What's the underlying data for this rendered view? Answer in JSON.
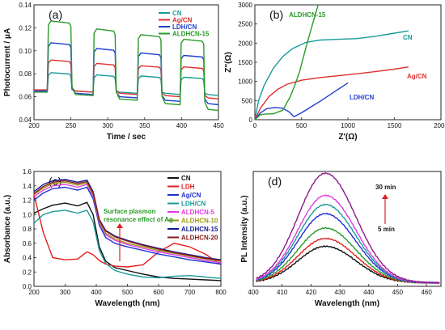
{
  "chart_data": [
    {
      "panel": "(a)",
      "type": "line",
      "xlabel": "Time / sec",
      "ylabel": "Photocurrent / μA",
      "xlim": [
        200,
        450
      ],
      "ylim": [
        0.04,
        0.14
      ],
      "xticks": [
        200,
        250,
        300,
        350,
        400,
        450
      ],
      "yticks": [
        0.04,
        0.06,
        0.08,
        0.1,
        0.12,
        0.14
      ],
      "legend_position": "top-right",
      "on_intervals": [
        [
          218,
          250
        ],
        [
          280,
          310
        ],
        [
          340,
          372
        ],
        [
          398,
          430
        ]
      ],
      "series": [
        {
          "name": "CN",
          "color": "#1a9a9a",
          "dark": [
            0.065,
            0.064,
            0.063,
            0.062,
            0.061
          ],
          "light": [
            0.081,
            0.079,
            0.078,
            0.077
          ]
        },
        {
          "name": "Ag/CN",
          "color": "#e03030",
          "dark": [
            0.066,
            0.064,
            0.062,
            0.06,
            0.058
          ],
          "light": [
            0.092,
            0.089,
            0.087,
            0.086
          ]
        },
        {
          "name": "LDH/CN",
          "color": "#1f3fd0",
          "dark": [
            0.065,
            0.062,
            0.059,
            0.056,
            0.053
          ],
          "light": [
            0.107,
            0.102,
            0.098,
            0.096
          ]
        },
        {
          "name": "ALDHCN-15",
          "color": "#2a9a2a",
          "dark": [
            0.064,
            0.061,
            0.057,
            0.053,
            0.048
          ],
          "light": [
            0.126,
            0.119,
            0.114,
            0.11
          ]
        }
      ]
    },
    {
      "panel": "(b)",
      "type": "line",
      "xlabel": "Z'(Ω)",
      "ylabel": "Z''(Ω)",
      "xlim": [
        0,
        2000
      ],
      "ylim": [
        0,
        3000
      ],
      "xticks": [
        0,
        500,
        1000,
        1500,
        2000
      ],
      "yticks": [
        0,
        500,
        1000,
        1500,
        2000,
        2500,
        3000
      ],
      "series": [
        {
          "name": "CN",
          "color": "#1a9a9a",
          "x": [
            0,
            40,
            100,
            200,
            300,
            400,
            550,
            700,
            900,
            1100,
            1300,
            1500,
            1650
          ],
          "y": [
            0,
            500,
            900,
            1350,
            1650,
            1850,
            2020,
            2080,
            2100,
            2120,
            2180,
            2260,
            2320
          ]
        },
        {
          "name": "Ag/CN",
          "color": "#e03030",
          "x": [
            0,
            60,
            150,
            250,
            350,
            500,
            700,
            900,
            1100,
            1300,
            1500,
            1650
          ],
          "y": [
            0,
            300,
            600,
            800,
            930,
            1030,
            1100,
            1150,
            1200,
            1260,
            1320,
            1380
          ]
        },
        {
          "name": "LDH/CN",
          "color": "#1f3fd0",
          "x": [
            0,
            60,
            130,
            220,
            300,
            370,
            420,
            500,
            600,
            700,
            800,
            900,
            1000
          ],
          "y": [
            0,
            180,
            290,
            320,
            300,
            200,
            80,
            180,
            330,
            480,
            640,
            800,
            960
          ]
        },
        {
          "name": "ALDHCN-15",
          "color": "#2a9a2a",
          "x": [
            0,
            60,
            120,
            200,
            300,
            380,
            430,
            480,
            550,
            620,
            680
          ],
          "y": [
            0,
            130,
            150,
            155,
            250,
            600,
            900,
            1250,
            1900,
            2500,
            3000
          ]
        }
      ],
      "labels": {
        "CN": "CN",
        "Ag/CN": "Ag/CN",
        "LDH/CN": "LDH/CN",
        "ALDHCN-15": "ALDHCN-15"
      }
    },
    {
      "panel": "(c)",
      "type": "line",
      "xlabel": "Wavelength (nm)",
      "ylabel": "Absorbance (a.u.)",
      "xlim": [
        200,
        800
      ],
      "ylim": [
        0.0,
        1.6
      ],
      "xticks": [
        200,
        300,
        400,
        500,
        600,
        700,
        800
      ],
      "yticks": [
        0.0,
        0.2,
        0.4,
        0.6,
        0.8,
        1.0,
        1.2,
        1.4,
        1.6
      ],
      "annotation": "Surface plasmon resonance effect of Ag",
      "x": [
        200,
        230,
        260,
        300,
        340,
        370,
        390,
        410,
        430,
        460,
        500,
        550,
        600,
        650,
        700,
        750,
        800
      ],
      "series": [
        {
          "name": "CN",
          "color": "#111111",
          "y": [
            1.02,
            1.08,
            1.13,
            1.16,
            1.12,
            1.17,
            1.0,
            0.55,
            0.35,
            0.26,
            0.22,
            0.17,
            0.13,
            0.11,
            0.1,
            0.09,
            0.08
          ]
        },
        {
          "name": "LDH",
          "color": "#e02020",
          "y": [
            1.28,
            0.75,
            0.4,
            0.37,
            0.38,
            0.48,
            0.44,
            0.36,
            0.31,
            0.28,
            0.27,
            0.3,
            0.48,
            0.6,
            0.55,
            0.45,
            0.3
          ]
        },
        {
          "name": "Ag/CN",
          "color": "#2030d0",
          "y": [
            1.2,
            1.3,
            1.36,
            1.38,
            1.34,
            1.38,
            1.22,
            0.85,
            0.68,
            0.6,
            0.55,
            0.5,
            0.45,
            0.41,
            0.37,
            0.34,
            0.31
          ]
        },
        {
          "name": "LDH/CN",
          "color": "#1a9a9a",
          "y": [
            0.88,
            1.0,
            1.04,
            1.06,
            1.02,
            1.06,
            0.9,
            0.5,
            0.32,
            0.22,
            0.17,
            0.13,
            0.12,
            0.14,
            0.15,
            0.13,
            0.11
          ]
        },
        {
          "name": "ALDHCN-5",
          "color": "#e03ae0",
          "y": [
            1.25,
            1.34,
            1.4,
            1.42,
            1.38,
            1.42,
            1.26,
            0.88,
            0.72,
            0.64,
            0.58,
            0.53,
            0.48,
            0.44,
            0.4,
            0.36,
            0.33
          ]
        },
        {
          "name": "ALDHCN-10",
          "color": "#9a9a18",
          "y": [
            1.28,
            1.37,
            1.43,
            1.45,
            1.41,
            1.44,
            1.28,
            0.9,
            0.74,
            0.66,
            0.6,
            0.55,
            0.5,
            0.46,
            0.42,
            0.38,
            0.35
          ]
        },
        {
          "name": "ALDHCN-15",
          "color": "#101a90",
          "y": [
            1.32,
            1.42,
            1.47,
            1.49,
            1.45,
            1.48,
            1.32,
            0.93,
            0.78,
            0.7,
            0.64,
            0.58,
            0.53,
            0.48,
            0.44,
            0.4,
            0.37
          ]
        },
        {
          "name": "ALDHCN-20",
          "color": "#8a1a1a",
          "y": [
            1.29,
            1.39,
            1.45,
            1.47,
            1.43,
            1.46,
            1.3,
            0.92,
            0.77,
            0.69,
            0.63,
            0.57,
            0.52,
            0.47,
            0.43,
            0.39,
            0.36
          ]
        }
      ]
    },
    {
      "panel": "(d)",
      "type": "line",
      "xlabel": "Wavelength (nm)",
      "ylabel": "PL Intensity (a.u.)",
      "xlim": [
        400,
        465
      ],
      "xticks": [
        400,
        410,
        420,
        430,
        440,
        450,
        460
      ],
      "yticks": [],
      "annotation_top": "30 min",
      "annotation_bottom": "5 min",
      "peak_wavelength": 425,
      "series": [
        {
          "color": "#111111",
          "peak": 140
        },
        {
          "color": "#e02020",
          "peak": 170
        },
        {
          "color": "#2a9a2a",
          "peak": 210
        },
        {
          "color": "#2030d0",
          "peak": 265
        },
        {
          "color": "#1a9aa0",
          "peak": 300
        },
        {
          "color": "#e03ae0",
          "peak": 335
        },
        {
          "color": "#8a1a8a",
          "peak": 420
        }
      ]
    }
  ]
}
